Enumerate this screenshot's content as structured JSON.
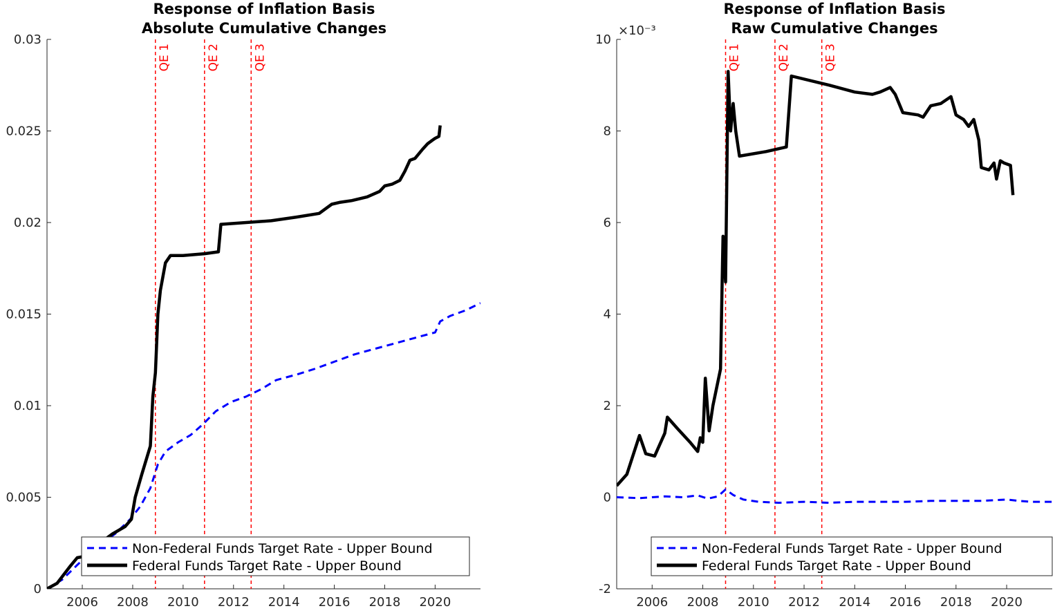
{
  "chart_data": [
    {
      "type": "line",
      "title": [
        "Response of Inflation Basis",
        "Absolute Cumulative Changes"
      ],
      "xlabel": "",
      "ylabel": "",
      "xlim": [
        2004.6,
        2021.8
      ],
      "ylim": [
        0,
        0.03
      ],
      "xticks": [
        2006,
        2008,
        2010,
        2012,
        2014,
        2016,
        2018,
        2020
      ],
      "yticks": [
        0,
        0.005,
        0.01,
        0.015,
        0.02,
        0.025,
        0.03
      ],
      "ytick_labels": [
        "0",
        "0.005",
        "0.01",
        "0.015",
        "0.02",
        "0.025",
        "0.03"
      ],
      "exponent_label": "",
      "grid": false,
      "legend_position": "bottom",
      "qe_lines": [
        {
          "label": "QE 1",
          "x": 2008.9
        },
        {
          "label": "QE 2",
          "x": 2010.85
        },
        {
          "label": "QE 3",
          "x": 2012.7
        }
      ],
      "series": [
        {
          "name": "Non-Federal Funds Target Rate - Upper Bound",
          "style": "dashed",
          "color": "#0000ff",
          "x": [
            2004.6,
            2005.2,
            2005.8,
            2006.5,
            2007.3,
            2007.9,
            2008.3,
            2008.7,
            2009.0,
            2009.3,
            2009.8,
            2010.3,
            2010.8,
            2011.3,
            2011.9,
            2012.5,
            2013.1,
            2013.7,
            2014.5,
            2015.2,
            2016.0,
            2016.8,
            2017.6,
            2018.4,
            2019.2,
            2020.0,
            2020.2,
            2020.6,
            2021.2,
            2021.8
          ],
          "y": [
            0,
            0.0005,
            0.0013,
            0.0022,
            0.003,
            0.0038,
            0.0045,
            0.0055,
            0.0068,
            0.0075,
            0.008,
            0.0084,
            0.009,
            0.0097,
            0.0102,
            0.0105,
            0.0109,
            0.0114,
            0.0117,
            0.012,
            0.0124,
            0.0128,
            0.0131,
            0.0134,
            0.0137,
            0.014,
            0.0146,
            0.0149,
            0.0152,
            0.0156
          ]
        },
        {
          "name": "Federal Funds Target Rate - Upper Bound",
          "style": "solid",
          "color": "#000000",
          "x": [
            2004.6,
            2005.0,
            2005.5,
            2005.8,
            2006.2,
            2006.6,
            2007.2,
            2007.7,
            2007.95,
            2008.1,
            2008.35,
            2008.7,
            2008.8,
            2008.9,
            2009.0,
            2009.1,
            2009.3,
            2009.5,
            2010.0,
            2010.85,
            2011.4,
            2011.5,
            2012.5,
            2013.5,
            2014.5,
            2015.4,
            2015.7,
            2015.9,
            2016.2,
            2016.7,
            2017.3,
            2017.8,
            2018.0,
            2018.3,
            2018.6,
            2018.8,
            2019.0,
            2019.2,
            2019.5,
            2019.7,
            2019.9,
            2020.0,
            2020.15,
            2020.2
          ],
          "y": [
            0,
            0.0003,
            0.0012,
            0.0017,
            0.0018,
            0.0024,
            0.003,
            0.0034,
            0.0038,
            0.005,
            0.0062,
            0.0078,
            0.0105,
            0.0118,
            0.015,
            0.0163,
            0.0178,
            0.0182,
            0.0182,
            0.0183,
            0.0184,
            0.0199,
            0.02,
            0.0201,
            0.0203,
            0.0205,
            0.0208,
            0.021,
            0.0211,
            0.0212,
            0.0214,
            0.0217,
            0.022,
            0.0221,
            0.0223,
            0.0228,
            0.0234,
            0.0235,
            0.024,
            0.0243,
            0.0245,
            0.0246,
            0.0247,
            0.0253
          ]
        }
      ]
    },
    {
      "type": "line",
      "title": [
        "Response of Inflation Basis",
        "Raw Cumulative Changes"
      ],
      "xlabel": "",
      "ylabel": "",
      "xlim": [
        2004.6,
        2021.8
      ],
      "ylim": [
        -2,
        10
      ],
      "xticks": [
        2006,
        2008,
        2010,
        2012,
        2014,
        2016,
        2018,
        2020
      ],
      "yticks": [
        -2,
        0,
        2,
        4,
        6,
        8,
        10
      ],
      "ytick_labels": [
        "-2",
        "0",
        "2",
        "4",
        "6",
        "8",
        "10"
      ],
      "exponent_label": "×10⁻³",
      "grid": false,
      "legend_position": "bottom",
      "qe_lines": [
        {
          "label": "QE 1",
          "x": 2008.9
        },
        {
          "label": "QE 2",
          "x": 2010.85
        },
        {
          "label": "QE 3",
          "x": 2012.7
        }
      ],
      "series": [
        {
          "name": "Non-Federal Funds Target Rate - Upper Bound",
          "style": "dashed",
          "color": "#0000ff",
          "x": [
            2004.6,
            2005.5,
            2006.5,
            2007.2,
            2007.8,
            2008.2,
            2008.6,
            2008.9,
            2009.2,
            2009.6,
            2010.2,
            2011.0,
            2012.0,
            2013.0,
            2014.0,
            2015.0,
            2016.0,
            2017.0,
            2018.0,
            2019.0,
            2020.0,
            2020.5,
            2021.0,
            2021.8
          ],
          "y": [
            0.0,
            -0.02,
            0.02,
            0.0,
            0.04,
            -0.03,
            0.02,
            0.17,
            0.05,
            -0.05,
            -0.1,
            -0.12,
            -0.1,
            -0.12,
            -0.1,
            -0.1,
            -0.1,
            -0.08,
            -0.08,
            -0.08,
            -0.05,
            -0.08,
            -0.1,
            -0.1
          ]
        },
        {
          "name": "Federal Funds Target Rate - Upper Bound",
          "style": "solid",
          "color": "#000000",
          "x": [
            2004.6,
            2005.0,
            2005.5,
            2005.75,
            2006.1,
            2006.5,
            2006.6,
            2007.0,
            2007.5,
            2007.8,
            2007.9,
            2008.0,
            2008.1,
            2008.25,
            2008.4,
            2008.7,
            2008.8,
            2008.9,
            2009.0,
            2009.1,
            2009.2,
            2009.3,
            2009.45,
            2010.5,
            2011.3,
            2011.5,
            2013.0,
            2014.0,
            2014.7,
            2015.0,
            2015.4,
            2015.6,
            2015.9,
            2016.5,
            2016.7,
            2017.0,
            2017.4,
            2017.8,
            2018.0,
            2018.3,
            2018.5,
            2018.7,
            2018.9,
            2019.0,
            2019.3,
            2019.5,
            2019.6,
            2019.75,
            2019.9,
            2020.15,
            2020.25
          ],
          "y": [
            0.25,
            0.5,
            1.35,
            0.95,
            0.9,
            1.4,
            1.75,
            1.5,
            1.2,
            1.0,
            1.3,
            1.2,
            2.6,
            1.45,
            2.0,
            2.8,
            5.7,
            4.7,
            9.3,
            8.0,
            8.6,
            8.0,
            7.45,
            7.55,
            7.65,
            9.2,
            9.0,
            8.85,
            8.8,
            8.85,
            8.95,
            8.8,
            8.4,
            8.35,
            8.3,
            8.55,
            8.6,
            8.75,
            8.35,
            8.25,
            8.1,
            8.25,
            7.8,
            7.2,
            7.15,
            7.3,
            6.95,
            7.35,
            7.3,
            7.25,
            6.6
          ]
        }
      ]
    }
  ]
}
